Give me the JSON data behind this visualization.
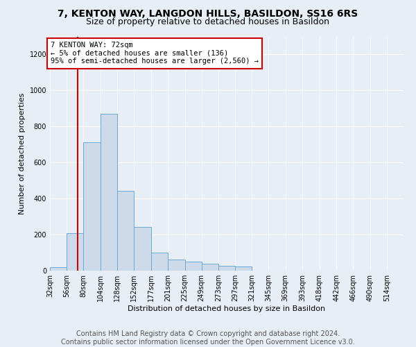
{
  "title_line1": "7, KENTON WAY, LANGDON HILLS, BASILDON, SS16 6RS",
  "title_line2": "Size of property relative to detached houses in Basildon",
  "xlabel": "Distribution of detached houses by size in Basildon",
  "ylabel": "Number of detached properties",
  "bar_color": "#ccdaea",
  "bar_edge_color": "#6aaad4",
  "annotation_box_text": "7 KENTON WAY: 72sqm\n← 5% of detached houses are smaller (136)\n95% of semi-detached houses are larger (2,560) →",
  "annotation_box_color": "#ffffff",
  "annotation_box_edge_color": "#cc0000",
  "vline_color": "#cc0000",
  "vline_x": 72,
  "background_color": "#e8eef5",
  "categories": [
    "32sqm",
    "56sqm",
    "80sqm",
    "104sqm",
    "128sqm",
    "152sqm",
    "177sqm",
    "201sqm",
    "225sqm",
    "249sqm",
    "273sqm",
    "297sqm",
    "321sqm",
    "345sqm",
    "369sqm",
    "393sqm",
    "418sqm",
    "442sqm",
    "466sqm",
    "490sqm",
    "514sqm"
  ],
  "bin_left_edges": [
    32,
    56,
    80,
    104,
    128,
    152,
    177,
    201,
    225,
    249,
    273,
    297,
    321,
    345,
    369,
    393,
    418,
    442,
    466,
    490,
    514
  ],
  "bin_widths": [
    24,
    24,
    24,
    24,
    24,
    25,
    24,
    24,
    24,
    24,
    24,
    24,
    24,
    24,
    24,
    25,
    24,
    24,
    24,
    24,
    24
  ],
  "values": [
    20,
    207,
    714,
    872,
    444,
    241,
    100,
    62,
    52,
    38,
    28,
    22,
    0,
    0,
    0,
    0,
    0,
    0,
    0,
    0,
    0
  ],
  "ylim": [
    0,
    1300
  ],
  "yticks": [
    0,
    200,
    400,
    600,
    800,
    1000,
    1200
  ],
  "grid_color": "#ffffff",
  "title_fontsize": 10,
  "subtitle_fontsize": 9,
  "footer_text": "Contains HM Land Registry data © Crown copyright and database right 2024.\nContains public sector information licensed under the Open Government Licence v3.0.",
  "footer_fontsize": 7,
  "tick_fontsize": 7,
  "axis_label_fontsize": 8
}
